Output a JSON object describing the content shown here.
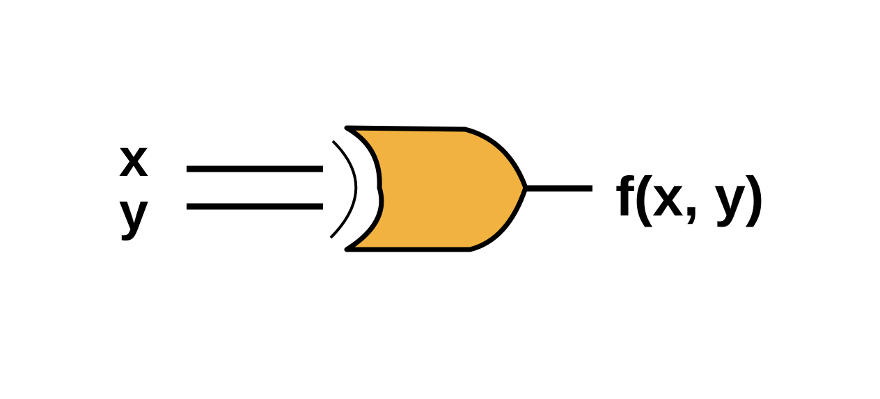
{
  "inputs": [
    {
      "name": "x"
    },
    {
      "name": "y"
    }
  ],
  "gate": {
    "type": "xor",
    "fill_color": "#F2B240",
    "stroke_color": "#000000"
  },
  "output": {
    "label": "f(x, y)"
  }
}
